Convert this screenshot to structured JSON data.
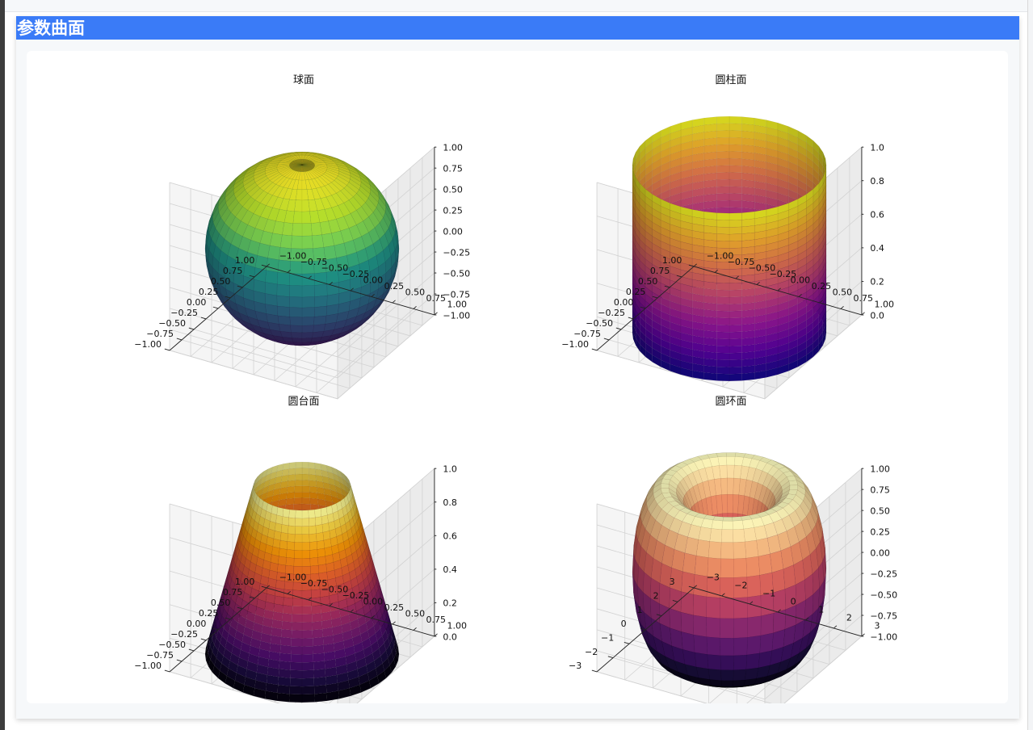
{
  "section": {
    "title": "参数曲面"
  },
  "chart_data": [
    {
      "type": "surface3d",
      "shape": "sphere",
      "title": "球面",
      "colormap": "viridis",
      "xlim": [
        -1,
        1
      ],
      "ylim": [
        -1,
        1
      ],
      "zlim": [
        -1,
        1
      ],
      "xticks": [
        "−1.00",
        "−0.75",
        "−0.50",
        "−0.25",
        "0.00",
        "0.25",
        "0.50",
        "0.75",
        "1.00"
      ],
      "yticks": [
        "−1.00",
        "−0.75",
        "−0.50",
        "−0.25",
        "0.00",
        "0.25",
        "0.50",
        "0.75",
        "1.00"
      ],
      "zticks": [
        "−1.00",
        "−0.75",
        "−0.50",
        "−0.25",
        "0.00",
        "0.25",
        "0.50",
        "0.75",
        "1.00"
      ],
      "params": {
        "r": 1
      }
    },
    {
      "type": "surface3d",
      "shape": "cylinder",
      "title": "圆柱面",
      "colormap": "plasma",
      "xlim": [
        -1,
        1
      ],
      "ylim": [
        -1,
        1
      ],
      "zlim": [
        0,
        1
      ],
      "xticks": [
        "−1.00",
        "−0.75",
        "−0.50",
        "−0.25",
        "0.00",
        "0.25",
        "0.50",
        "0.75",
        "1.00"
      ],
      "yticks": [
        "−1.00",
        "−0.75",
        "−0.50",
        "−0.25",
        "0.00",
        "0.25",
        "0.50",
        "0.75",
        "1.00"
      ],
      "zticks": [
        "0.0",
        "0.2",
        "0.4",
        "0.6",
        "0.8",
        "1.0"
      ],
      "params": {
        "r": 1,
        "h": 1
      }
    },
    {
      "type": "surface3d",
      "shape": "frustum",
      "title": "圆台面",
      "colormap": "inferno",
      "xlim": [
        -1,
        1
      ],
      "ylim": [
        -1,
        1
      ],
      "zlim": [
        0,
        1
      ],
      "xticks": [
        "−1.00",
        "−0.75",
        "−0.50",
        "−0.25",
        "0.00",
        "0.25",
        "0.50",
        "0.75",
        "1.00"
      ],
      "yticks": [
        "−1.00",
        "−0.75",
        "−0.50",
        "−0.25",
        "0.00",
        "0.25",
        "0.50",
        "0.75",
        "1.00"
      ],
      "zticks": [
        "0.0",
        "0.2",
        "0.4",
        "0.6",
        "0.8",
        "1.0"
      ],
      "params": {
        "r_bottom": 1,
        "r_top": 0.5,
        "h": 1
      }
    },
    {
      "type": "surface3d",
      "shape": "torus",
      "title": "圆环面",
      "colormap": "magma",
      "xlim": [
        -3,
        3
      ],
      "ylim": [
        -3,
        3
      ],
      "zlim": [
        -1,
        1
      ],
      "xticks": [
        "−3",
        "−2",
        "−1",
        "0",
        "1",
        "2",
        "3"
      ],
      "yticks": [
        "−3",
        "−2",
        "−1",
        "0",
        "1",
        "2",
        "3"
      ],
      "zticks": [
        "−1.00",
        "−0.75",
        "−0.50",
        "−0.25",
        "0.00",
        "0.25",
        "0.50",
        "0.75",
        "1.00"
      ],
      "params": {
        "R": 2,
        "r": 1
      }
    }
  ]
}
